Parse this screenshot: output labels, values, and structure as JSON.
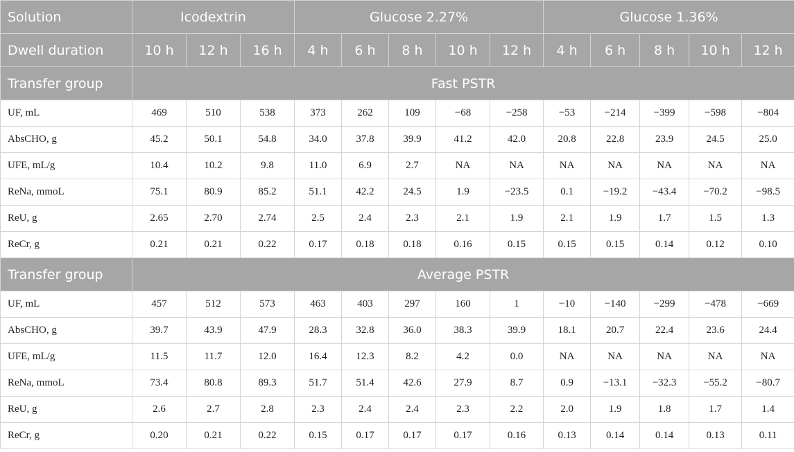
{
  "header": {
    "solution_label": "Solution",
    "solutions": [
      "Icodextrin",
      "Glucose 2.27%",
      "Glucose 1.36%"
    ],
    "dwell_label": "Dwell duration",
    "durations": [
      "10 h",
      "12 h",
      "16 h",
      "4 h",
      "6 h",
      "8 h",
      "10 h",
      "12 h",
      "4 h",
      "6 h",
      "8 h",
      "10 h",
      "12 h"
    ]
  },
  "groups": [
    {
      "label": "Transfer group",
      "name": "Fast PSTR",
      "rows": [
        {
          "label": "UF, mL",
          "values": [
            "469",
            "510",
            "538",
            "373",
            "262",
            "109",
            "−68",
            "−258",
            "−53",
            "−214",
            "−399",
            "−598",
            "−804"
          ]
        },
        {
          "label": "AbsCHO, g",
          "values": [
            "45.2",
            "50.1",
            "54.8",
            "34.0",
            "37.8",
            "39.9",
            "41.2",
            "42.0",
            "20.8",
            "22.8",
            "23.9",
            "24.5",
            "25.0"
          ]
        },
        {
          "label": "UFE, mL/g",
          "values": [
            "10.4",
            "10.2",
            "9.8",
            "11.0",
            "6.9",
            "2.7",
            "NA",
            "NA",
            "NA",
            "NA",
            "NA",
            "NA",
            "NA"
          ]
        },
        {
          "label": "ReNa, mmoL",
          "values": [
            "75.1",
            "80.9",
            "85.2",
            "51.1",
            "42.2",
            "24.5",
            "1.9",
            "−23.5",
            "0.1",
            "−19.2",
            "−43.4",
            "−70.2",
            "−98.5"
          ]
        },
        {
          "label": "ReU, g",
          "values": [
            "2.65",
            "2.70",
            "2.74",
            "2.5",
            "2.4",
            "2.3",
            "2.1",
            "1.9",
            "2.1",
            "1.9",
            "1.7",
            "1.5",
            "1.3"
          ]
        },
        {
          "label": "ReCr, g",
          "values": [
            "0.21",
            "0.21",
            "0.22",
            "0.17",
            "0.18",
            "0.18",
            "0.16",
            "0.15",
            "0.15",
            "0.15",
            "0.14",
            "0.12",
            "0.10"
          ]
        }
      ]
    },
    {
      "label": "Transfer group",
      "name": "Average PSTR",
      "rows": [
        {
          "label": "UF, mL",
          "values": [
            "457",
            "512",
            "573",
            "463",
            "403",
            "297",
            "160",
            "1",
            "−10",
            "−140",
            "−299",
            "−478",
            "−669"
          ]
        },
        {
          "label": "AbsCHO, g",
          "values": [
            "39.7",
            "43.9",
            "47.9",
            "28.3",
            "32.8",
            "36.0",
            "38.3",
            "39.9",
            "18.1",
            "20.7",
            "22.4",
            "23.6",
            "24.4"
          ]
        },
        {
          "label": "UFE, mL/g",
          "values": [
            "11.5",
            "11.7",
            "12.0",
            "16.4",
            "12.3",
            "8.2",
            "4.2",
            "0.0",
            "NA",
            "NA",
            "NA",
            "NA",
            "NA"
          ]
        },
        {
          "label": "ReNa, mmoL",
          "values": [
            "73.4",
            "80.8",
            "89.3",
            "51.7",
            "51.4",
            "42.6",
            "27.9",
            "8.7",
            "0.9",
            "−13.1",
            "−32.3",
            "−55.2",
            "−80.7"
          ]
        },
        {
          "label": "ReU, g",
          "values": [
            "2.6",
            "2.7",
            "2.8",
            "2.3",
            "2.4",
            "2.4",
            "2.3",
            "2.2",
            "2.0",
            "1.9",
            "1.8",
            "1.7",
            "1.4"
          ]
        },
        {
          "label": "ReCr, g",
          "values": [
            "0.20",
            "0.21",
            "0.22",
            "0.15",
            "0.17",
            "0.17",
            "0.17",
            "0.16",
            "0.13",
            "0.14",
            "0.14",
            "0.13",
            "0.11"
          ]
        }
      ]
    }
  ]
}
